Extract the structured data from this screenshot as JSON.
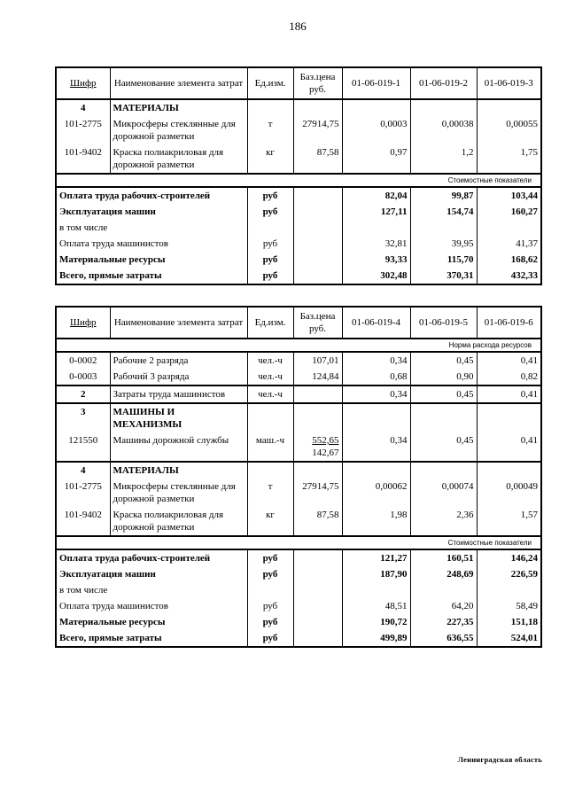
{
  "page": {
    "number": "186",
    "footer": "Ленинградская область"
  },
  "colors": {
    "paper": "#ffffff",
    "ink": "#000000"
  },
  "tables": [
    {
      "title": "norms 01-06-019-1..3",
      "header": {
        "code": "Шифр",
        "name": "Наименование элемента затрат",
        "unit": "Ед.изм.",
        "price": "Баз.цена руб.",
        "norms": [
          "01-06-019-1",
          "01-06-019-2",
          "01-06-019-3"
        ]
      },
      "top_band": "",
      "sections": [
        {
          "rows": [
            {
              "code": "4",
              "code_bold": true,
              "name": "МАТЕРИАЛЫ",
              "name_bold": true,
              "unit": "",
              "price": "",
              "price2": "",
              "values": [
                "",
                "",
                ""
              ]
            },
            {
              "code": "101-2775",
              "code_bold": false,
              "name": "Микросферы стеклянные для дорожной разметки",
              "name_bold": false,
              "unit": "т",
              "price": "27914,75",
              "price2": "",
              "values": [
                "0,0003",
                "0,00038",
                "0,00055"
              ]
            },
            {
              "code": "101-9402",
              "code_bold": false,
              "name": "Краска полиакриловая для дорожной разметки",
              "name_bold": false,
              "unit": "кг",
              "price": "87,58",
              "price2": "",
              "values": [
                "0,97",
                "1,2",
                "1,75"
              ]
            }
          ]
        }
      ],
      "cost_band": "Стоимостные показатели",
      "cost_rows": [
        {
          "label": "Оплата труда рабочих-строителей",
          "bold": true,
          "unit": "руб",
          "values": [
            "82,04",
            "99,87",
            "103,44"
          ]
        },
        {
          "label": "Эксплуатация машин",
          "bold": true,
          "unit": "руб",
          "values": [
            "127,11",
            "154,74",
            "160,27"
          ]
        },
        {
          "label": "в том числе",
          "bold": false,
          "unit": "",
          "values": [
            "",
            "",
            ""
          ]
        },
        {
          "label": "Оплата труда машинистов",
          "bold": false,
          "unit": "руб",
          "values": [
            "32,81",
            "39,95",
            "41,37"
          ]
        },
        {
          "label": "Материальные ресурсы",
          "bold": true,
          "unit": "руб",
          "values": [
            "93,33",
            "115,70",
            "168,62"
          ]
        },
        {
          "label": "Всего, прямые затраты",
          "bold": true,
          "unit": "руб",
          "values": [
            "302,48",
            "370,31",
            "432,33"
          ]
        }
      ]
    },
    {
      "title": "norms 01-06-019-4..6",
      "header": {
        "code": "Шифр",
        "name": "Наименование элемента затрат",
        "unit": "Ед.изм.",
        "price": "Баз.цена руб.",
        "norms": [
          "01-06-019-4",
          "01-06-019-5",
          "01-06-019-6"
        ]
      },
      "top_band": "Норма расхода ресурсов",
      "sections": [
        {
          "rows": [
            {
              "code": "0-0002",
              "code_bold": false,
              "name": "Рабочие 2 разряда",
              "name_bold": false,
              "unit": "чел.-ч",
              "price": "107,01",
              "price2": "",
              "values": [
                "0,34",
                "0,45",
                "0,41"
              ]
            },
            {
              "code": "0-0003",
              "code_bold": false,
              "name": "Рабочий 3 разряда",
              "name_bold": false,
              "unit": "чел.-ч",
              "price": "124,84",
              "price2": "",
              "values": [
                "0,68",
                "0,90",
                "0,82"
              ]
            }
          ]
        },
        {
          "rows": [
            {
              "code": "2",
              "code_bold": true,
              "name": "Затраты труда машинистов",
              "name_bold": false,
              "unit": "чел.-ч",
              "price": "",
              "price2": "",
              "values": [
                "0,34",
                "0,45",
                "0,41"
              ]
            }
          ]
        },
        {
          "rows": [
            {
              "code": "3",
              "code_bold": true,
              "name": "МАШИНЫ И МЕХАНИЗМЫ",
              "name_bold": true,
              "unit": "",
              "price": "",
              "price2": "",
              "values": [
                "",
                "",
                ""
              ]
            },
            {
              "code": "121550",
              "code_bold": false,
              "name": "Машины дорожной службы",
              "name_bold": false,
              "unit": "маш.-ч",
              "price": "552,65",
              "price2": "142,67",
              "values": [
                "0,34",
                "0,45",
                "0,41"
              ]
            }
          ]
        },
        {
          "rows": [
            {
              "code": "4",
              "code_bold": true,
              "name": "МАТЕРИАЛЫ",
              "name_bold": true,
              "unit": "",
              "price": "",
              "price2": "",
              "values": [
                "",
                "",
                ""
              ]
            },
            {
              "code": "101-2775",
              "code_bold": false,
              "name": "Микросферы стеклянные для дорожной разметки",
              "name_bold": false,
              "unit": "т",
              "price": "27914,75",
              "price2": "",
              "values": [
                "0,00062",
                "0,00074",
                "0,00049"
              ]
            },
            {
              "code": "101-9402",
              "code_bold": false,
              "name": "Краска полиакриловая для дорожной разметки",
              "name_bold": false,
              "unit": "кг",
              "price": "87,58",
              "price2": "",
              "values": [
                "1,98",
                "2,36",
                "1,57"
              ]
            }
          ]
        }
      ],
      "cost_band": "Стоимостные показатели",
      "cost_rows": [
        {
          "label": "Оплата труда рабочих-строителей",
          "bold": true,
          "unit": "руб",
          "values": [
            "121,27",
            "160,51",
            "146,24"
          ]
        },
        {
          "label": "Эксплуатация машин",
          "bold": true,
          "unit": "руб",
          "values": [
            "187,90",
            "248,69",
            "226,59"
          ]
        },
        {
          "label": "в том числе",
          "bold": false,
          "unit": "",
          "values": [
            "",
            "",
            ""
          ]
        },
        {
          "label": "Оплата труда машинистов",
          "bold": false,
          "unit": "руб",
          "values": [
            "48,51",
            "64,20",
            "58,49"
          ]
        },
        {
          "label": "Материальные ресурсы",
          "bold": true,
          "unit": "руб",
          "values": [
            "190,72",
            "227,35",
            "151,18"
          ]
        },
        {
          "label": "Всего, прямые затраты",
          "bold": true,
          "unit": "руб",
          "values": [
            "499,89",
            "636,55",
            "524,01"
          ]
        }
      ]
    }
  ]
}
